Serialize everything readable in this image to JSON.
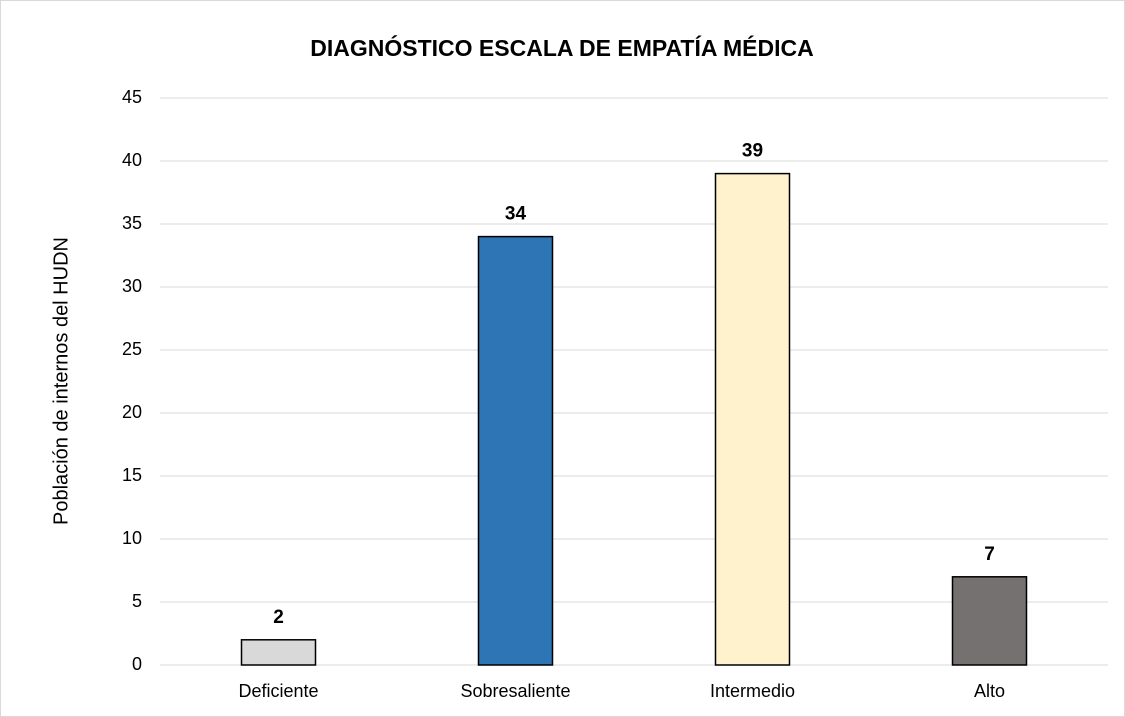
{
  "chart_data": {
    "type": "bar",
    "title": "DIAGNÓSTICO ESCALA DE EMPATÍA MÉDICA",
    "y_label": "Población de internos del HUDN",
    "categories": [
      "Deficiente",
      "Sobresaliente",
      "Intermedio",
      "Alto"
    ],
    "values": [
      2,
      34,
      39,
      7
    ],
    "colors": [
      "#d9d9d9",
      "#2e75b6",
      "#fff2cc",
      "#767171"
    ],
    "ylim": [
      0,
      45
    ],
    "yticks": [
      0,
      5,
      10,
      15,
      20,
      25,
      30,
      35,
      40,
      45
    ],
    "grid": true
  }
}
